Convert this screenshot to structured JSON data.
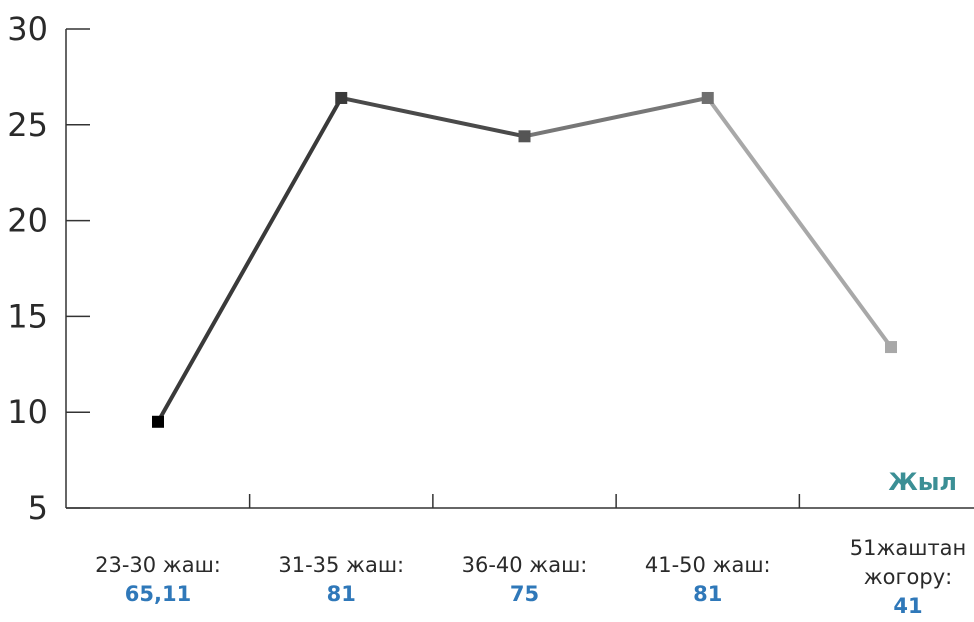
{
  "chart_data": {
    "type": "line",
    "xlabel": "Жыл",
    "ylabel": "",
    "ylim": [
      5,
      30
    ],
    "yticks": [
      5,
      10,
      15,
      20,
      25,
      30
    ],
    "categories": [
      {
        "label_lines": [
          "23-30 жаш:"
        ],
        "value_text": "65,11"
      },
      {
        "label_lines": [
          "31-35 жаш:"
        ],
        "value_text": "81"
      },
      {
        "label_lines": [
          "36-40 жаш:"
        ],
        "value_text": "75"
      },
      {
        "label_lines": [
          "41-50 жаш:"
        ],
        "value_text": "81"
      },
      {
        "label_lines": [
          "51жаштан",
          "жогору:"
        ],
        "value_text": "41"
      }
    ],
    "values": [
      9.5,
      26.4,
      24.4,
      26.4,
      13.4
    ],
    "point_colors": [
      "#000000",
      "#3a3a3a",
      "#555555",
      "#6f6f6f",
      "#a8a8a8"
    ],
    "segment_colors": [
      "#3a3a3a",
      "#4a4a4a",
      "#777777",
      "#a8a8a8"
    ],
    "axis_color": "#333333",
    "legend": "none",
    "grid": false
  }
}
